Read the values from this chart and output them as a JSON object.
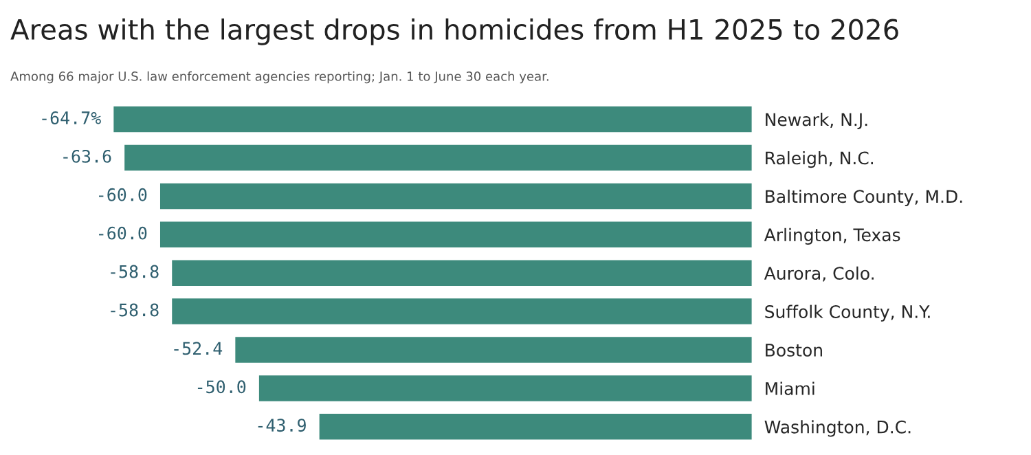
{
  "chart_data": {
    "type": "bar",
    "orientation": "horizontal",
    "title": "Areas with the largest drops in homicides from H1 2025 to 2026",
    "subtitle": "Among 66 major U.S. law enforcement agencies reporting; Jan. 1 to June 30 each year.",
    "categories": [
      "Newark, N.J.",
      "Raleigh, N.C.",
      "Baltimore County, M.D.",
      "Arlington, Texas",
      "Aurora, Colo.",
      "Suffolk County, N.Y.",
      "Boston",
      "Miami",
      "Washington, D.C."
    ],
    "values": [
      -64.7,
      -63.6,
      -60.0,
      -60.0,
      -58.8,
      -58.8,
      -52.4,
      -50.0,
      -43.9
    ],
    "value_labels": [
      "-64.7%",
      "-63.6",
      "-60.0",
      "-60.0",
      "-58.8",
      "-58.8",
      "-52.4",
      "-50.0",
      "-43.9"
    ],
    "color": "#3d8a7c",
    "tick_labels": "y",
    "grid": false,
    "legend": false
  }
}
